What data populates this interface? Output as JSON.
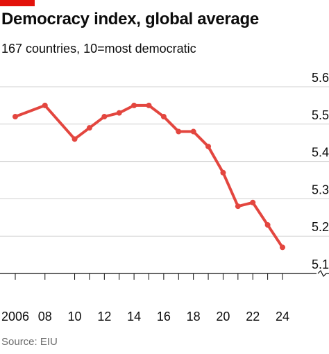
{
  "chart_data": {
    "type": "line",
    "title": "Democracy index, global average",
    "subtitle": "167 countries, 10=most democratic",
    "source": "Source: EIU",
    "x": [
      2006,
      2008,
      2010,
      2011,
      2012,
      2013,
      2014,
      2015,
      2016,
      2017,
      2018,
      2019,
      2020,
      2021,
      2022,
      2023,
      2024
    ],
    "x_tick_values": [
      2006,
      2008,
      2010,
      2012,
      2014,
      2016,
      2018,
      2020,
      2022,
      2024
    ],
    "x_tick_labels": [
      "2006",
      "08",
      "10",
      "12",
      "14",
      "16",
      "18",
      "20",
      "22",
      "24"
    ],
    "series": [
      {
        "values": [
          5.52,
          5.55,
          5.46,
          5.49,
          5.52,
          5.53,
          5.55,
          5.55,
          5.52,
          5.48,
          5.48,
          5.44,
          5.37,
          5.28,
          5.29,
          5.23,
          5.17
        ]
      }
    ],
    "y_ticks": [
      5.1,
      5.2,
      5.3,
      5.4,
      5.5,
      5.6
    ],
    "y_tick_labels": [
      "5.1",
      "5.2",
      "5.3",
      "5.4",
      "5.5",
      "5.6"
    ],
    "ylim": [
      5.1,
      5.6
    ],
    "xlim": [
      2006,
      2024
    ],
    "y_axis_side": "right",
    "grid": true,
    "colors": {
      "line": "#e3463f",
      "grid": "#d0d0d0",
      "axis": "#0c0c0c",
      "brand": "#e3120b"
    }
  }
}
